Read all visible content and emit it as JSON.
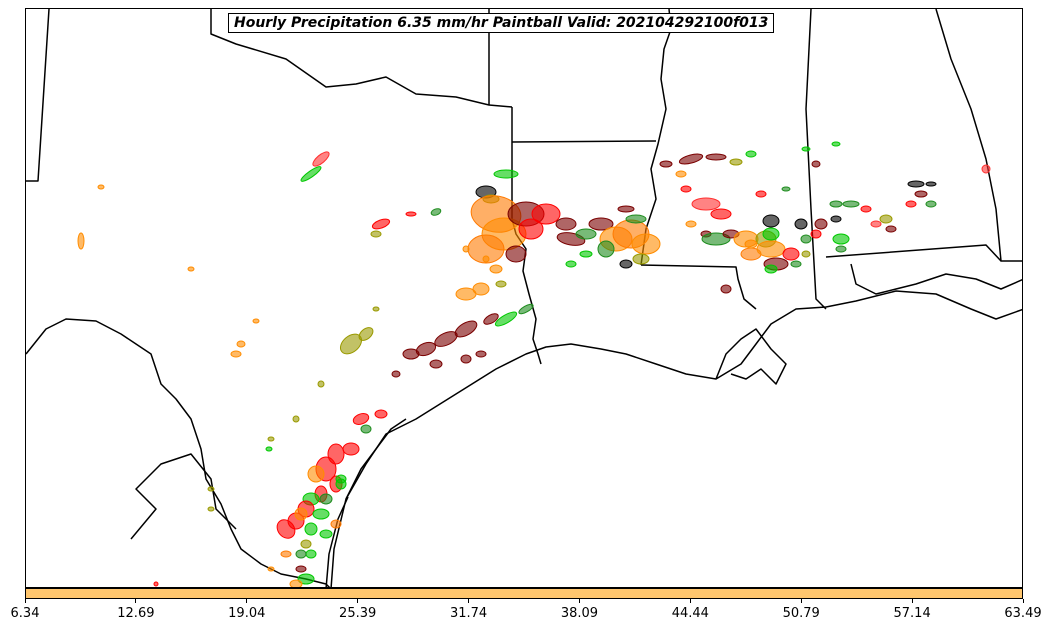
{
  "title": "Hourly Precipitation 6.35 mm/hr Paintball Valid: 202104292100f013",
  "colorbar": {
    "color": "#ffc66e",
    "ticks": [
      "6.34",
      "12.69",
      "19.04",
      "25.39",
      "31.74",
      "38.09",
      "44.44",
      "50.79",
      "57.14",
      "63.49"
    ]
  },
  "member_colors": [
    "#ff0000",
    "#00c800",
    "#ff8c00",
    "#000000",
    "#7a0000",
    "#9a9a00",
    "#1e8c1e",
    "#ff7a00",
    "#ff3030"
  ]
}
